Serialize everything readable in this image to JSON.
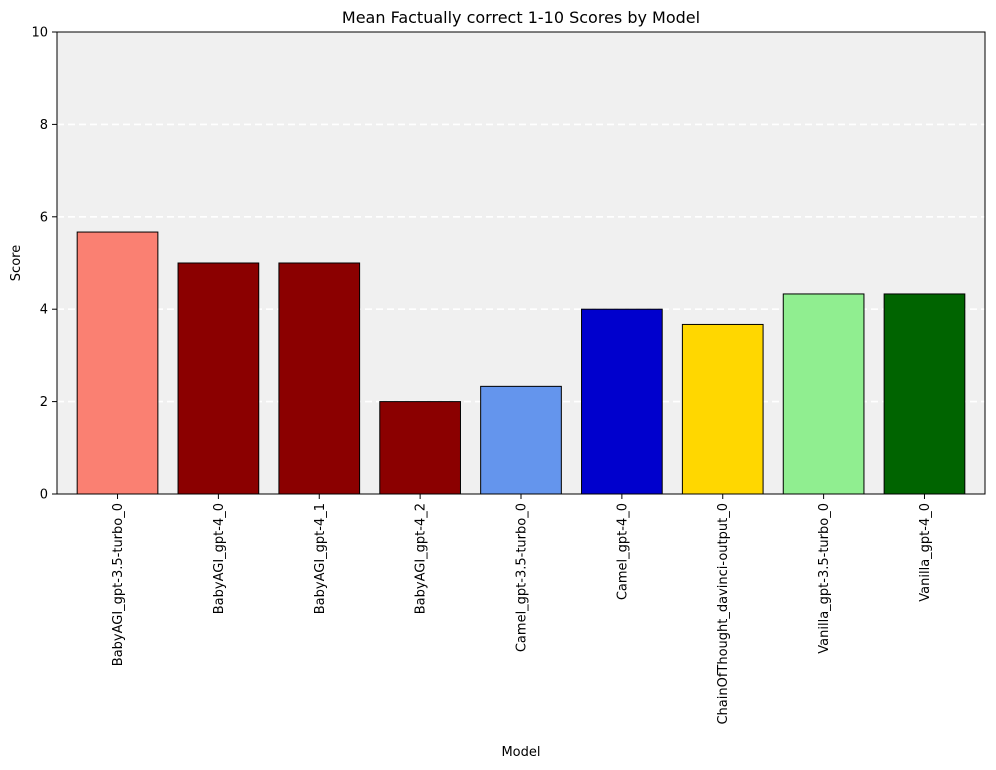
{
  "chart_data": {
    "type": "bar",
    "title": "Mean Factually correct 1-10 Scores by Model",
    "xlabel": "Model",
    "ylabel": "Score",
    "ylim": [
      0,
      10
    ],
    "yticks": [
      0,
      2,
      4,
      6,
      8,
      10
    ],
    "grid": "y-dashed",
    "categories": [
      "BabyAGI_gpt-3.5-turbo_0",
      "BabyAGI_gpt-4_0",
      "BabyAGI_gpt-4_1",
      "BabyAGI_gpt-4_2",
      "Camel_gpt-3.5-turbo_0",
      "Camel_gpt-4_0",
      "ChainOfThought_davinci-output_0",
      "Vanilla_gpt-3.5-turbo_0",
      "Vanilla_gpt-4_0"
    ],
    "values": [
      5.67,
      5.0,
      5.0,
      2.0,
      2.33,
      4.0,
      3.67,
      4.33,
      4.33
    ],
    "colors": [
      "#fa8072",
      "#8b0000",
      "#8b0000",
      "#8b0000",
      "#6495ed",
      "#0000cd",
      "#ffd700",
      "#90ee90",
      "#006400"
    ],
    "plot_background": "#f0f0f0"
  }
}
